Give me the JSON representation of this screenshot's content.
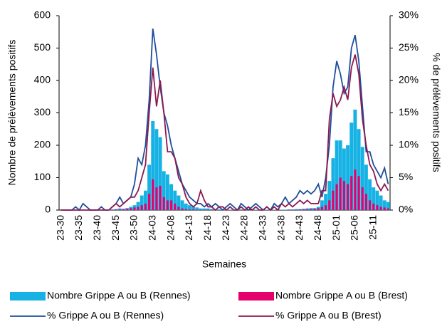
{
  "chart_data": {
    "type": "bar-line",
    "categories": [
      "23-30",
      null,
      null,
      null,
      null,
      "23-35",
      null,
      null,
      null,
      null,
      "23-40",
      null,
      null,
      null,
      null,
      "23-45",
      null,
      null,
      null,
      null,
      "23-50",
      null,
      null,
      null,
      null,
      "24-03",
      null,
      null,
      null,
      null,
      "24-08",
      null,
      null,
      null,
      null,
      "24-13",
      null,
      null,
      null,
      null,
      "24-18",
      null,
      null,
      null,
      null,
      "24-23",
      null,
      null,
      null,
      null,
      "24-28",
      null,
      null,
      null,
      null,
      "24-33",
      null,
      null,
      null,
      null,
      "24-38",
      null,
      null,
      null,
      null,
      "24-43",
      null,
      null,
      null,
      null,
      "24-48",
      null,
      null,
      null,
      null,
      "25-01",
      null,
      null,
      null,
      null,
      "25-06",
      null,
      null,
      null,
      null,
      "25-11",
      null,
      null,
      null,
      null
    ],
    "xlabel": "Semaines",
    "ylabel": "Nombre de prélèvements positifs",
    "y2label": "% de prélèvements positifs",
    "ylim": [
      0,
      600
    ],
    "yticks": [
      0,
      100,
      200,
      300,
      400,
      500,
      600
    ],
    "y2lim": [
      0,
      30
    ],
    "y2ticks": [
      {
        "value": 0,
        "label": "0%"
      },
      {
        "value": 5,
        "label": "5%"
      },
      {
        "value": 10,
        "label": "10%"
      },
      {
        "value": 15,
        "label": "15%"
      },
      {
        "value": 20,
        "label": "20%"
      },
      {
        "value": 25,
        "label": "25%"
      },
      {
        "value": 30,
        "label": "30%"
      }
    ],
    "series": [
      {
        "name": "Nombre Grippe A ou B (Rennes)",
        "kind": "bar",
        "color": "#17b2e4",
        "values": [
          0,
          0,
          1,
          0,
          0,
          1,
          0,
          0,
          0,
          1,
          0,
          0,
          0,
          1,
          2,
          3,
          5,
          4,
          6,
          10,
          15,
          25,
          45,
          60,
          140,
          275,
          250,
          225,
          120,
          110,
          80,
          60,
          45,
          30,
          20,
          15,
          10,
          8,
          5,
          5,
          5,
          3,
          2,
          2,
          1,
          1,
          1,
          1,
          1,
          0,
          1,
          0,
          0,
          1,
          0,
          0,
          1,
          0,
          1,
          0,
          1,
          1,
          2,
          2,
          3,
          3,
          4,
          5,
          6,
          6,
          10,
          30,
          50,
          90,
          160,
          215,
          215,
          190,
          200,
          270,
          310,
          250,
          195,
          140,
          95,
          70,
          60,
          45,
          30,
          25
        ]
      },
      {
        "name": "Nombre Grippe A ou B (Brest)",
        "kind": "bar",
        "color": "#e6006e",
        "values": [
          0,
          0,
          0,
          0,
          0,
          0,
          0,
          0,
          0,
          0,
          0,
          0,
          0,
          0,
          1,
          2,
          2,
          3,
          4,
          6,
          8,
          10,
          15,
          20,
          50,
          95,
          70,
          75,
          40,
          30,
          30,
          20,
          10,
          5,
          3,
          2,
          2,
          1,
          1,
          1,
          1,
          1,
          1,
          0,
          0,
          0,
          0,
          0,
          0,
          0,
          0,
          0,
          0,
          0,
          0,
          0,
          0,
          0,
          0,
          0,
          0,
          0,
          1,
          1,
          1,
          2,
          2,
          3,
          3,
          4,
          6,
          10,
          15,
          30,
          60,
          80,
          100,
          90,
          80,
          105,
          125,
          105,
          70,
          50,
          30,
          20,
          15,
          10,
          8,
          5
        ]
      },
      {
        "name": "% Grippe A ou B (Rennes)",
        "kind": "line",
        "axis": "y2",
        "color": "#1f4e9c",
        "values": [
          0,
          0,
          0,
          0,
          0.5,
          0,
          1,
          0.5,
          0,
          0,
          0,
          0.5,
          0,
          0,
          0.5,
          1,
          2,
          1,
          1.5,
          2,
          4,
          8,
          7,
          10,
          17,
          28,
          24,
          19,
          15,
          13,
          10,
          8,
          6,
          4,
          3,
          2,
          1.5,
          1,
          1,
          0.5,
          1,
          0.5,
          1,
          0.5,
          0,
          0.5,
          1,
          0.5,
          0,
          1,
          0.5,
          0,
          0.5,
          1,
          0.5,
          0,
          0.5,
          0,
          1,
          0.5,
          1,
          2,
          1,
          1.5,
          2,
          3,
          2.5,
          3,
          2.5,
          3,
          4,
          2,
          5,
          10,
          19,
          23,
          21,
          18,
          19,
          25,
          27,
          23,
          16,
          9,
          9,
          7,
          6,
          5,
          6.5,
          4
        ]
      },
      {
        "name": "% Grippe A ou B (Brest)",
        "kind": "line",
        "axis": "y2",
        "color": "#8b1a4f",
        "values": [
          0,
          0,
          0,
          0,
          0,
          0,
          0,
          0,
          0,
          0,
          0,
          0,
          0,
          0,
          0.5,
          1,
          0.5,
          1,
          1.5,
          2,
          2,
          3,
          5,
          7,
          15,
          22,
          16,
          20,
          15,
          9,
          9,
          8,
          5,
          4,
          2,
          1,
          0.5,
          1,
          3,
          1.5,
          0.5,
          0.5,
          0,
          0.5,
          0.5,
          0,
          0.5,
          0,
          0,
          0.5,
          0,
          0.5,
          0,
          0.5,
          0,
          0,
          0.5,
          0,
          0.5,
          0,
          1,
          0.5,
          1,
          0.5,
          1,
          1.5,
          1,
          1.5,
          1,
          1,
          1,
          3,
          3,
          14,
          18,
          16,
          17,
          19,
          17,
          22,
          24,
          21,
          14,
          10,
          7,
          6,
          4,
          3,
          4,
          3
        ]
      }
    ]
  }
}
